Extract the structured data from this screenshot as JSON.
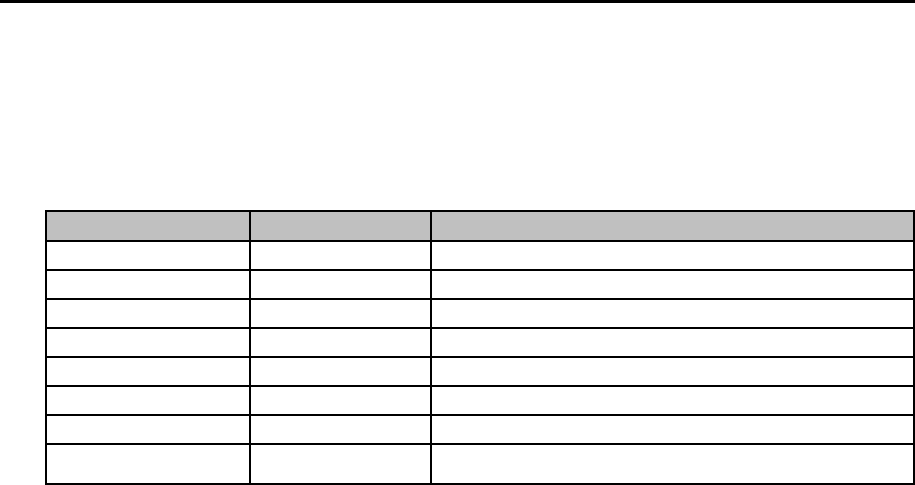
{
  "page": {
    "background": "#ffffff",
    "top_bar_color": "#000000"
  },
  "table": {
    "border_color": "#000000",
    "header": {
      "background": "#c0c0c0",
      "cells": [
        "",
        "",
        ""
      ]
    },
    "rows": [
      [
        "",
        "",
        ""
      ],
      [
        "",
        "",
        ""
      ],
      [
        "",
        "",
        ""
      ],
      [
        "",
        "",
        ""
      ],
      [
        "",
        "",
        ""
      ],
      [
        "",
        "",
        ""
      ],
      [
        "",
        "",
        ""
      ],
      [
        "",
        "",
        ""
      ]
    ]
  }
}
